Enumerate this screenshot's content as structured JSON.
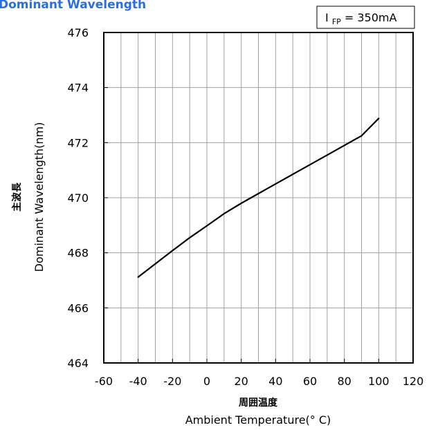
{
  "chart_data": {
    "type": "line",
    "title": "Dominant Wavelength",
    "annotation": {
      "main": "I",
      "sub": "FP",
      "rest": "= 350mA"
    },
    "ylabel_jp": "主波長",
    "ylabel": "Dominant Wavelength(nm)",
    "xlabel_jp": "周囲温度",
    "xlabel": "Ambient Temperature(° C)",
    "xlim": [
      -60,
      120
    ],
    "ylim": [
      464,
      476
    ],
    "x_ticks": [
      -60,
      -40,
      -20,
      0,
      20,
      40,
      60,
      80,
      100,
      120
    ],
    "y_ticks": [
      464,
      466,
      468,
      470,
      472,
      474,
      476
    ],
    "grid": true,
    "series": [
      {
        "x": [
          -40,
          -30,
          -20,
          -10,
          0,
          10,
          20,
          30,
          40,
          50,
          60,
          70,
          80,
          90,
          100
        ],
        "y": [
          467.12,
          467.6,
          468.08,
          468.55,
          468.98,
          469.42,
          469.8,
          470.15,
          470.5,
          470.85,
          471.2,
          471.55,
          471.9,
          472.25,
          472.88
        ],
        "color": "#000000"
      }
    ]
  }
}
